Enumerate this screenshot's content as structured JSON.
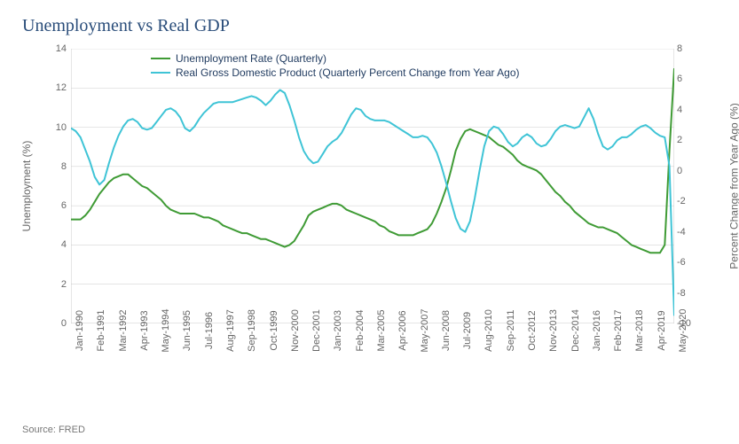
{
  "title": "Unemployment vs Real GDP",
  "source": "Source: FRED",
  "chart": {
    "type": "line",
    "background_color": "#ffffff",
    "grid_color": "#cccccc",
    "axis_color": "#cccccc",
    "title_fontsize": 20,
    "label_fontsize": 12,
    "tick_fontsize": 11,
    "left_axis": {
      "label": "Unemployment (%)",
      "ylim": [
        0,
        14
      ],
      "ytick_step": 2,
      "ticks": [
        0,
        2,
        4,
        6,
        8,
        10,
        12,
        14
      ]
    },
    "right_axis": {
      "label": "Percent Change from Year Ago (%)",
      "ylim": [
        -10,
        8
      ],
      "ytick_step": 2,
      "ticks": [
        -10,
        -8,
        -6,
        -4,
        -2,
        0,
        2,
        4,
        6,
        8
      ]
    },
    "x_labels": [
      "Jan-1990",
      "Feb-1991",
      "Mar-1992",
      "Apr-1993",
      "May-1994",
      "Jun-1995",
      "Jul-1996",
      "Aug-1997",
      "Sep-1998",
      "Oct-1999",
      "Nov-2000",
      "Dec-2001",
      "Jan-2003",
      "Feb-2004",
      "Mar-2005",
      "Apr-2006",
      "May-2007",
      "Jun-2008",
      "Jul-2009",
      "Aug-2010",
      "Sep-2011",
      "Oct-2012",
      "Nov-2013",
      "Dec-2014",
      "Jan-2016",
      "Feb-2017",
      "Mar-2018",
      "Apr-2019",
      "May-2020"
    ],
    "series": [
      {
        "name": "Unemployment Rate (Quarterly)",
        "axis": "left",
        "color": "#3f9b35",
        "line_width": 2,
        "data": [
          5.3,
          5.3,
          5.3,
          5.5,
          5.8,
          6.2,
          6.6,
          6.9,
          7.2,
          7.4,
          7.5,
          7.6,
          7.6,
          7.4,
          7.2,
          7.0,
          6.9,
          6.7,
          6.5,
          6.3,
          6.0,
          5.8,
          5.7,
          5.6,
          5.6,
          5.6,
          5.6,
          5.5,
          5.4,
          5.4,
          5.3,
          5.2,
          5.0,
          4.9,
          4.8,
          4.7,
          4.6,
          4.6,
          4.5,
          4.4,
          4.3,
          4.3,
          4.2,
          4.1,
          4.0,
          3.9,
          4.0,
          4.2,
          4.6,
          5.0,
          5.5,
          5.7,
          5.8,
          5.9,
          6.0,
          6.1,
          6.1,
          6.0,
          5.8,
          5.7,
          5.6,
          5.5,
          5.4,
          5.3,
          5.2,
          5.0,
          4.9,
          4.7,
          4.6,
          4.5,
          4.5,
          4.5,
          4.5,
          4.6,
          4.7,
          4.8,
          5.1,
          5.6,
          6.2,
          6.9,
          7.8,
          8.8,
          9.4,
          9.8,
          9.9,
          9.8,
          9.7,
          9.6,
          9.5,
          9.3,
          9.1,
          9.0,
          8.8,
          8.6,
          8.3,
          8.1,
          8.0,
          7.9,
          7.8,
          7.6,
          7.3,
          7.0,
          6.7,
          6.5,
          6.2,
          6.0,
          5.7,
          5.5,
          5.3,
          5.1,
          5.0,
          4.9,
          4.9,
          4.8,
          4.7,
          4.6,
          4.4,
          4.2,
          4.0,
          3.9,
          3.8,
          3.7,
          3.6,
          3.6,
          3.6,
          4.0,
          8.8,
          13.0
        ]
      },
      {
        "name": "Real Gross Domestic Product (Quarterly Percent Change from Year Ago)",
        "axis": "right",
        "color": "#3fc4d6",
        "line_width": 2,
        "data": [
          2.8,
          2.6,
          2.2,
          1.4,
          0.6,
          -0.4,
          -0.9,
          -0.6,
          0.5,
          1.5,
          2.3,
          2.9,
          3.3,
          3.4,
          3.2,
          2.8,
          2.7,
          2.8,
          3.2,
          3.6,
          4.0,
          4.1,
          3.9,
          3.5,
          2.8,
          2.6,
          2.9,
          3.4,
          3.8,
          4.1,
          4.4,
          4.5,
          4.5,
          4.5,
          4.5,
          4.6,
          4.7,
          4.8,
          4.9,
          4.8,
          4.6,
          4.3,
          4.6,
          5.0,
          5.3,
          5.1,
          4.3,
          3.3,
          2.2,
          1.3,
          0.8,
          0.5,
          0.6,
          1.1,
          1.6,
          1.9,
          2.1,
          2.5,
          3.1,
          3.7,
          4.1,
          4.0,
          3.6,
          3.4,
          3.3,
          3.3,
          3.3,
          3.2,
          3.0,
          2.8,
          2.6,
          2.4,
          2.2,
          2.2,
          2.3,
          2.2,
          1.8,
          1.2,
          0.3,
          -0.8,
          -2.0,
          -3.1,
          -3.8,
          -4.0,
          -3.3,
          -1.8,
          0.0,
          1.6,
          2.6,
          2.9,
          2.8,
          2.4,
          1.9,
          1.6,
          1.8,
          2.2,
          2.4,
          2.2,
          1.8,
          1.6,
          1.7,
          2.1,
          2.6,
          2.9,
          3.0,
          2.9,
          2.8,
          2.9,
          3.5,
          4.1,
          3.4,
          2.4,
          1.6,
          1.4,
          1.6,
          2.0,
          2.2,
          2.2,
          2.4,
          2.7,
          2.9,
          3.0,
          2.8,
          2.5,
          2.3,
          2.2,
          0.3,
          -9.5
        ]
      }
    ]
  }
}
